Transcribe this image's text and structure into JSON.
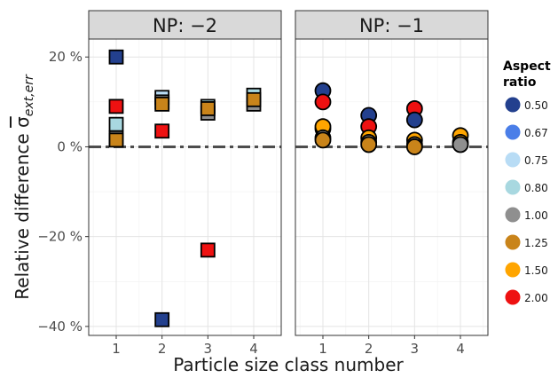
{
  "chart_data": [
    {
      "type": "scatter",
      "facet": "NP: −2",
      "marker": "square",
      "ylabel": "Relative difference",
      "ylabel_symbol": "σ",
      "ylabel_subscript": "ext,err",
      "xlabel": "Particle size class number",
      "x_ticks": [
        1,
        2,
        3,
        4
      ],
      "y_ticks": [
        20,
        0,
        -20,
        -40
      ],
      "y_tick_labels": [
        "20 %",
        "0 %",
        "−20 %",
        "−40 %"
      ],
      "xlim": [
        0.4,
        4.6
      ],
      "ylim": [
        -42,
        24
      ],
      "reference_line": 0,
      "points": [
        {
          "x": 1,
          "y": 20,
          "aspect": "0.50"
        },
        {
          "x": 1,
          "y": 9,
          "aspect": "2.00"
        },
        {
          "x": 1,
          "y": 5,
          "aspect": "0.80"
        },
        {
          "x": 1,
          "y": 2,
          "aspect": "1.00"
        },
        {
          "x": 1,
          "y": 1.5,
          "aspect": "1.25"
        },
        {
          "x": 2,
          "y": 11,
          "aspect": "0.75"
        },
        {
          "x": 2,
          "y": 10,
          "aspect": "1.00"
        },
        {
          "x": 2,
          "y": 9.5,
          "aspect": "1.25"
        },
        {
          "x": 2,
          "y": 3.5,
          "aspect": "2.00"
        },
        {
          "x": 2,
          "y": -38.5,
          "aspect": "0.50"
        },
        {
          "x": 3,
          "y": 9,
          "aspect": "0.80"
        },
        {
          "x": 3,
          "y": 7.5,
          "aspect": "1.00"
        },
        {
          "x": 3,
          "y": 8.5,
          "aspect": "1.25"
        },
        {
          "x": 3,
          "y": -23,
          "aspect": "2.00"
        },
        {
          "x": 4,
          "y": 11.5,
          "aspect": "0.80"
        },
        {
          "x": 4,
          "y": 9.5,
          "aspect": "1.00"
        },
        {
          "x": 4,
          "y": 10.5,
          "aspect": "1.25"
        }
      ]
    },
    {
      "type": "scatter",
      "facet": "NP: −1",
      "marker": "circle",
      "x_ticks": [
        1,
        2,
        3,
        4
      ],
      "xlim": [
        0.4,
        4.6
      ],
      "ylim": [
        -42,
        24
      ],
      "reference_line": 0,
      "points": [
        {
          "x": 1,
          "y": 12.5,
          "aspect": "0.50"
        },
        {
          "x": 1,
          "y": 10,
          "aspect": "2.00"
        },
        {
          "x": 1,
          "y": 4,
          "aspect": "1.25"
        },
        {
          "x": 1,
          "y": 4.5,
          "aspect": "1.50"
        },
        {
          "x": 1,
          "y": 2,
          "aspect": "1.00"
        },
        {
          "x": 1,
          "y": 1.5,
          "aspect": "1.25"
        },
        {
          "x": 2,
          "y": 7,
          "aspect": "0.50"
        },
        {
          "x": 2,
          "y": 4.5,
          "aspect": "2.00"
        },
        {
          "x": 2,
          "y": 2,
          "aspect": "1.50"
        },
        {
          "x": 2,
          "y": 1,
          "aspect": "1.00"
        },
        {
          "x": 2,
          "y": 0.5,
          "aspect": "1.25"
        },
        {
          "x": 3,
          "y": 8.5,
          "aspect": "2.00"
        },
        {
          "x": 3,
          "y": 6,
          "aspect": "0.50"
        },
        {
          "x": 3,
          "y": 1.5,
          "aspect": "1.50"
        },
        {
          "x": 3,
          "y": 0.5,
          "aspect": "1.00"
        },
        {
          "x": 3,
          "y": 0,
          "aspect": "1.25"
        },
        {
          "x": 4,
          "y": 2.5,
          "aspect": "1.50"
        },
        {
          "x": 4,
          "y": 1,
          "aspect": "1.25"
        },
        {
          "x": 4,
          "y": 0.5,
          "aspect": "1.00"
        }
      ]
    }
  ],
  "legend": {
    "title_line1": "Aspect",
    "title_line2": "ratio",
    "entries": [
      {
        "label": "0.50",
        "color": "#23408e"
      },
      {
        "label": "0.67",
        "color": "#4a7ee8"
      },
      {
        "label": "0.75",
        "color": "#b8dcf5"
      },
      {
        "label": "0.80",
        "color": "#a8d8e0"
      },
      {
        "label": "1.00",
        "color": "#8f8f8f"
      },
      {
        "label": "1.25",
        "color": "#c9841a"
      },
      {
        "label": "1.50",
        "color": "#ffa500"
      },
      {
        "label": "2.00",
        "color": "#ee1111"
      }
    ]
  }
}
